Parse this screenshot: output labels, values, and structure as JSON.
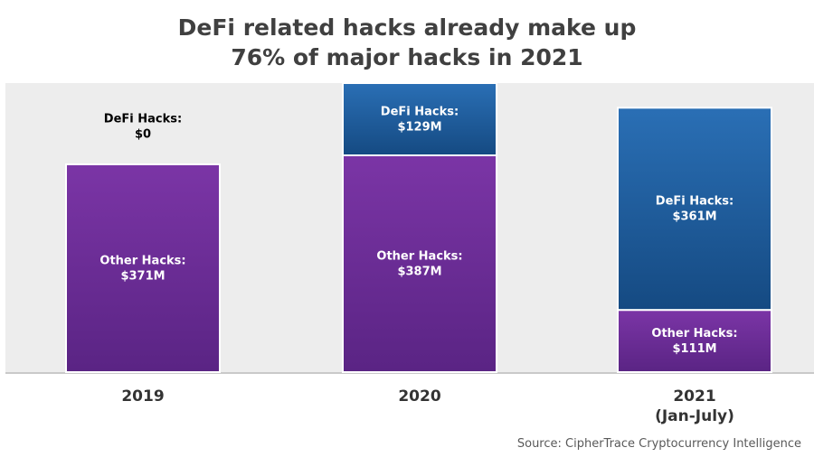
{
  "title_line1": "DeFi related hacks already make up",
  "title_line2": "76% of major hacks in 2021",
  "source": "Source: CipherTrace Cryptocurrency Intelligence",
  "colors": {
    "defi": "#1e5fa0",
    "other": "#6a2d91",
    "background": "#ededed"
  },
  "chart_data": {
    "type": "bar",
    "stacked": true,
    "categories": [
      "2019",
      "2020",
      "2021\n(Jan-July)"
    ],
    "category_lines": [
      [
        "2019"
      ],
      [
        "2020"
      ],
      [
        "2021",
        "(Jan-July)"
      ]
    ],
    "series": [
      {
        "name": "Other Hacks",
        "values": [
          371,
          387,
          111
        ],
        "labels": [
          "Other Hacks:\n$371M",
          "Other Hacks:\n$387M",
          "Other Hacks:\n$111M"
        ]
      },
      {
        "name": "DeFi Hacks",
        "values": [
          0,
          129,
          361
        ],
        "labels": [
          "DeFi Hacks:\n$0",
          "DeFi Hacks:\n$129M",
          "DeFi Hacks:\n$361M"
        ]
      }
    ],
    "unit": "$M",
    "ylim": [
      0,
      516
    ],
    "grid": false,
    "legend": "none"
  }
}
